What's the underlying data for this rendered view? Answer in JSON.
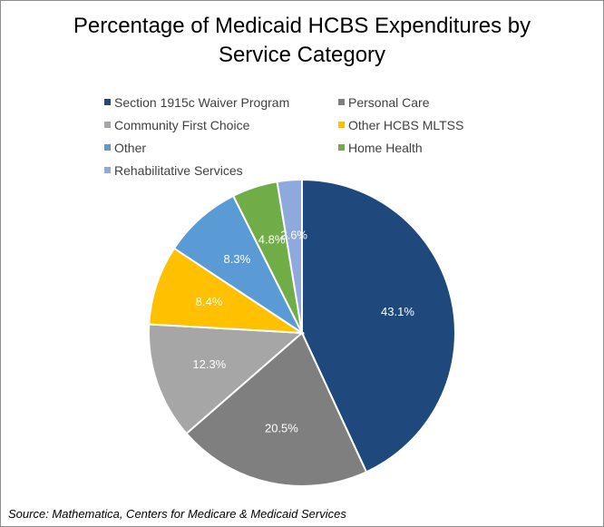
{
  "chart_data": {
    "type": "pie",
    "title": "Percentage of Medicaid HCBS Expenditures by Service Category",
    "title_lines": [
      "Percentage of Medicaid HCBS Expenditures by",
      "Service Category"
    ],
    "legend_position": "top",
    "start_angle_deg": 0,
    "direction": "clockwise",
    "slices": [
      {
        "name": "Section 1915c Waiver Program",
        "value": 43.1,
        "label": "43.1%",
        "color": "#1f497d"
      },
      {
        "name": "Personal Care",
        "value": 20.5,
        "label": "20.5%",
        "color": "#7f7f7f"
      },
      {
        "name": "Community First Choice",
        "value": 12.3,
        "label": "12.3%",
        "color": "#a6a6a6"
      },
      {
        "name": "Other HCBS MLTSS",
        "value": 8.4,
        "label": "8.4%",
        "color": "#ffc000"
      },
      {
        "name": "Other",
        "value": 8.3,
        "label": "8.3%",
        "color": "#5b9bd5"
      },
      {
        "name": "Home Health",
        "value": 4.8,
        "label": "4.8%",
        "color": "#70ad47"
      },
      {
        "name": "Rehabilitative Services",
        "value": 2.6,
        "label": "2.6%",
        "color": "#8ea9db"
      }
    ]
  },
  "source": "Source: Mathematica, Centers for Medicare & Medicaid Services"
}
